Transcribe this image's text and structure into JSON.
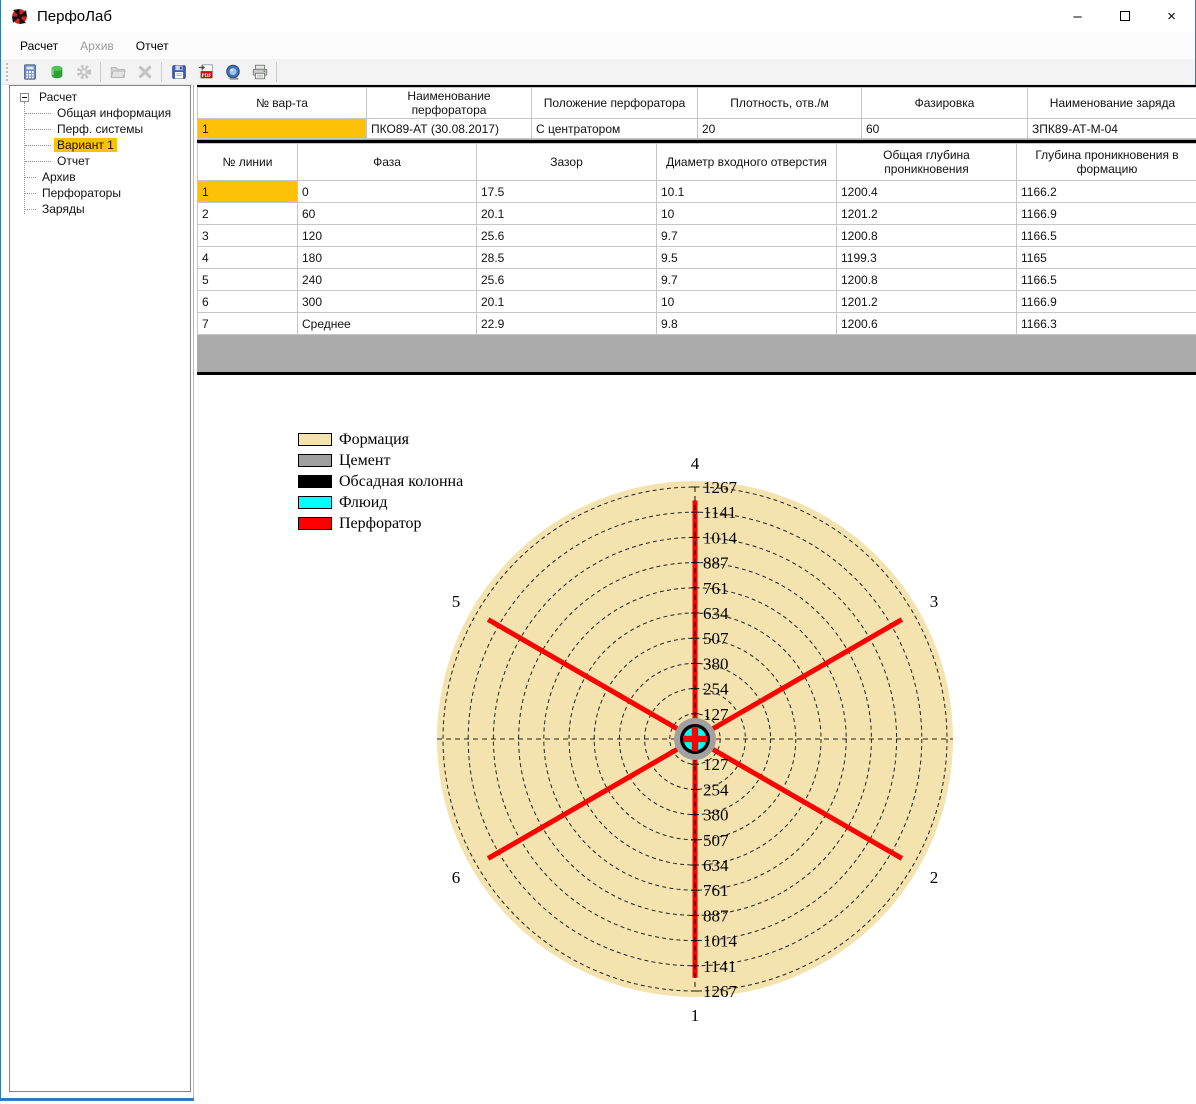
{
  "window": {
    "title": "ПерфоЛаб",
    "controls": [
      {
        "name": "minimize",
        "glyph": "–"
      },
      {
        "name": "maximize",
        "glyph": ""
      },
      {
        "name": "close",
        "glyph": "×"
      }
    ]
  },
  "menu": {
    "items": [
      {
        "label": "Расчет",
        "enabled": true
      },
      {
        "label": "Архив",
        "enabled": false
      },
      {
        "label": "Отчет",
        "enabled": true
      }
    ]
  },
  "toolbar": {
    "items": [
      {
        "type": "icon",
        "name": "calculator",
        "enabled": true
      },
      {
        "type": "icon",
        "name": "database",
        "enabled": true
      },
      {
        "type": "icon",
        "name": "settings-gear",
        "enabled": false
      },
      {
        "type": "sep"
      },
      {
        "type": "icon",
        "name": "open-folder",
        "enabled": false
      },
      {
        "type": "icon",
        "name": "delete-x",
        "enabled": false
      },
      {
        "type": "sep"
      },
      {
        "type": "icon",
        "name": "save",
        "enabled": true
      },
      {
        "type": "icon",
        "name": "export-pdf",
        "enabled": true
      },
      {
        "type": "icon",
        "name": "snapshot",
        "enabled": true
      },
      {
        "type": "icon",
        "name": "print",
        "enabled": true
      },
      {
        "type": "sep"
      }
    ]
  },
  "sidebar": {
    "tree": [
      {
        "label": "Расчет",
        "level": 0,
        "expander": "minus",
        "selected": false
      },
      {
        "label": "Общая информация",
        "level": 1,
        "selected": false
      },
      {
        "label": "Перф. системы",
        "level": 1,
        "selected": false
      },
      {
        "label": "Вариант 1",
        "level": 1,
        "selected": true
      },
      {
        "label": "Отчет",
        "level": 1,
        "selected": false
      },
      {
        "label": "Архив",
        "level": 0,
        "selected": false
      },
      {
        "label": "Перфораторы",
        "level": 0,
        "selected": false
      },
      {
        "label": "Заряды",
        "level": 0,
        "selected": false
      }
    ]
  },
  "variant_table": {
    "headers": [
      "№ вар-та",
      "Наименование перфоратора",
      "Положение перфоратора",
      "Плотность, отв./м",
      "Фазировка",
      "Наименование заряда"
    ],
    "rows": [
      [
        "1",
        "ПКО89-АТ (30.08.2017)",
        "С центратором",
        "20",
        "60",
        "ЗПК89-АТ-М-04"
      ]
    ]
  },
  "lines_table": {
    "headers": [
      "№ линии",
      "Фаза",
      "Зазор",
      "Диаметр входного отверстия",
      "Общая глубина проникновения",
      "Глубина проникновения в формацию"
    ],
    "rows": [
      [
        "1",
        "0",
        "17.5",
        "10.1",
        "1200.4",
        "1166.2"
      ],
      [
        "2",
        "60",
        "20.1",
        "10",
        "1201.2",
        "1166.9"
      ],
      [
        "3",
        "120",
        "25.6",
        "9.7",
        "1200.8",
        "1166.5"
      ],
      [
        "4",
        "180",
        "28.5",
        "9.5",
        "1199.3",
        "1165"
      ],
      [
        "5",
        "240",
        "25.6",
        "9.7",
        "1200.8",
        "1166.5"
      ],
      [
        "6",
        "300",
        "20.1",
        "10",
        "1201.2",
        "1166.9"
      ],
      [
        "7",
        "Среднее",
        "22.9",
        "9.8",
        "1200.6",
        "1166.3"
      ]
    ]
  },
  "chart_data": {
    "type": "polar",
    "title": "",
    "rings": [
      127,
      254,
      380,
      507,
      634,
      761,
      887,
      1014,
      1141,
      1267
    ],
    "r_max": 1267,
    "grid": "dashed",
    "legend_position": "top-left",
    "legend": [
      {
        "label": "Формация",
        "color": "#F5E3AF"
      },
      {
        "label": "Цемент",
        "color": "#A0A0A0"
      },
      {
        "label": "Обсадная колонна",
        "color": "#000000"
      },
      {
        "label": "Флюид",
        "color": "#00FFFF"
      },
      {
        "label": "Перфоратор",
        "color": "#FF0000"
      }
    ],
    "rays": [
      {
        "label": "1",
        "angle_deg": 270,
        "value": 1200.4
      },
      {
        "label": "2",
        "angle_deg": 330,
        "value": 1201.2
      },
      {
        "label": "3",
        "angle_deg": 30,
        "value": 1200.8
      },
      {
        "label": "4",
        "angle_deg": 90,
        "value": 1199.3
      },
      {
        "label": "5",
        "angle_deg": 150,
        "value": 1200.8
      },
      {
        "label": "6",
        "angle_deg": 210,
        "value": 1201.2
      }
    ],
    "colors": {
      "formation": "#F5E3AF",
      "cement": "#A0A0A0",
      "casing": "#000000",
      "fluid": "#00FFFF",
      "perforator": "#FF0000",
      "grid_line": "#222222"
    }
  },
  "colors": {
    "highlight": "#FFC008",
    "window_border": "#2F7AC5",
    "filler_gray": "#ABABAB"
  }
}
